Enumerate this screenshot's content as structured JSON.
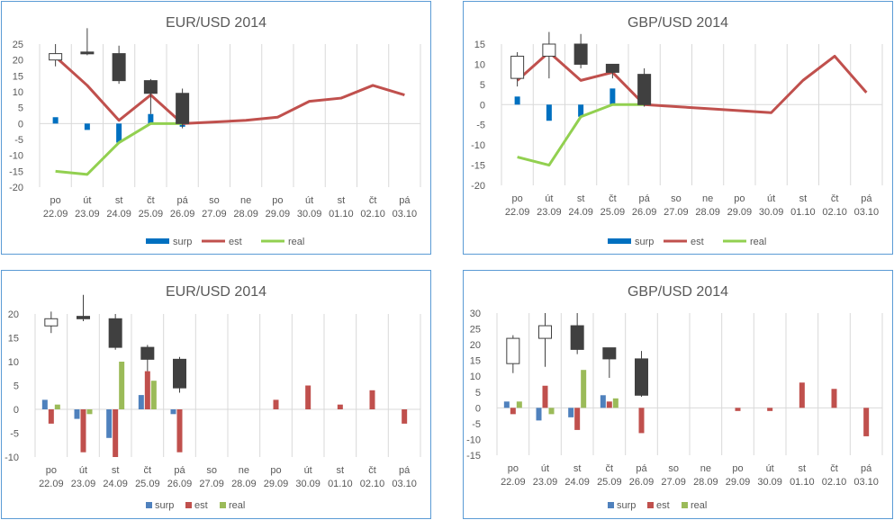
{
  "chart_data": [
    {
      "type": "line",
      "title": "EUR/USD 2014",
      "categories": [
        {
          "day": "po",
          "date": "22.09"
        },
        {
          "day": "út",
          "date": "23.09"
        },
        {
          "day": "st",
          "date": "24.09"
        },
        {
          "day": "čt",
          "date": "25.09"
        },
        {
          "day": "pá",
          "date": "26.09"
        },
        {
          "day": "so",
          "date": "27.09"
        },
        {
          "day": "ne",
          "date": "28.09"
        },
        {
          "day": "po",
          "date": "29.09"
        },
        {
          "day": "út",
          "date": "30.09"
        },
        {
          "day": "st",
          "date": "01.10"
        },
        {
          "day": "čt",
          "date": "02.10"
        },
        {
          "day": "pá",
          "date": "03.10"
        }
      ],
      "ylim": [
        -20,
        25
      ],
      "ystep": 5,
      "legend": [
        "surp",
        "est",
        "real"
      ],
      "series": {
        "surp": [
          2,
          -2,
          -6,
          3,
          -1,
          null,
          null,
          null,
          null,
          null,
          null,
          null
        ],
        "est": [
          21,
          12,
          1,
          9,
          0,
          0.5,
          1,
          2,
          7,
          8,
          12,
          9
        ],
        "real": [
          -15,
          -16,
          -6,
          0,
          0,
          null,
          null,
          null,
          null,
          null,
          null,
          null
        ]
      },
      "candles": [
        {
          "i": 0,
          "open": 20,
          "close": 22,
          "high": 25,
          "low": 18
        },
        {
          "i": 1,
          "open": 22.5,
          "close": 22,
          "high": 30,
          "low": 21.5
        },
        {
          "i": 2,
          "open": 22,
          "close": 13.5,
          "high": 24.5,
          "low": 12.5
        },
        {
          "i": 3,
          "open": 13.5,
          "close": 9.5,
          "high": 14,
          "low": 3
        },
        {
          "i": 4,
          "open": 9.5,
          "close": 0,
          "high": 11,
          "low": -1.5
        }
      ]
    },
    {
      "type": "line",
      "title": "GBP/USD 2014",
      "categories": [
        {
          "day": "po",
          "date": "22.09"
        },
        {
          "day": "út",
          "date": "23.09"
        },
        {
          "day": "st",
          "date": "24.09"
        },
        {
          "day": "čt",
          "date": "25.09"
        },
        {
          "day": "pá",
          "date": "26.09"
        },
        {
          "day": "so",
          "date": "27.09"
        },
        {
          "day": "ne",
          "date": "28.09"
        },
        {
          "day": "po",
          "date": "29.09"
        },
        {
          "day": "út",
          "date": "30.09"
        },
        {
          "day": "st",
          "date": "01.10"
        },
        {
          "day": "čt",
          "date": "02.10"
        },
        {
          "day": "pá",
          "date": "03.10"
        }
      ],
      "ylim": [
        -20,
        15
      ],
      "ystep": 5,
      "legend": [
        "surp",
        "est",
        "real"
      ],
      "series": {
        "surp": [
          2,
          -4,
          -3,
          4,
          0,
          null,
          null,
          null,
          null,
          null,
          null,
          null
        ],
        "est": [
          6,
          13,
          6,
          8,
          0,
          -0.5,
          -1,
          -1.5,
          -2,
          6,
          12,
          3
        ],
        "real": [
          -13,
          -15,
          -3,
          0,
          0,
          null,
          null,
          null,
          null,
          null,
          null,
          null
        ]
      },
      "candles": [
        {
          "i": 0,
          "open": 6.5,
          "close": 12,
          "high": 13,
          "low": 4.5
        },
        {
          "i": 1,
          "open": 12,
          "close": 15,
          "high": 18,
          "low": 6.5
        },
        {
          "i": 2,
          "open": 15,
          "close": 10,
          "high": 17.5,
          "low": 9
        },
        {
          "i": 3,
          "open": 10,
          "close": 8,
          "high": 10,
          "low": 6.5
        },
        {
          "i": 4,
          "open": 7.5,
          "close": 0,
          "high": 9,
          "low": -0.5
        }
      ]
    },
    {
      "type": "bar",
      "title": "EUR/USD 2014",
      "categories": [
        {
          "day": "po",
          "date": "22.09"
        },
        {
          "day": "út",
          "date": "23.09"
        },
        {
          "day": "st",
          "date": "24.09"
        },
        {
          "day": "čt",
          "date": "25.09"
        },
        {
          "day": "pá",
          "date": "26.09"
        },
        {
          "day": "so",
          "date": "27.09"
        },
        {
          "day": "ne",
          "date": "28.09"
        },
        {
          "day": "po",
          "date": "29.09"
        },
        {
          "day": "út",
          "date": "30.09"
        },
        {
          "day": "st",
          "date": "01.10"
        },
        {
          "day": "čt",
          "date": "02.10"
        },
        {
          "day": "pá",
          "date": "03.10"
        }
      ],
      "ylim": [
        -10,
        20
      ],
      "ystep": 5,
      "legend": [
        "surp",
        "est",
        "real"
      ],
      "series": {
        "surp": [
          2,
          -2,
          -6,
          3,
          -1,
          null,
          null,
          null,
          null,
          null,
          null,
          null
        ],
        "est": [
          -3,
          -9,
          -10,
          8,
          -9,
          null,
          null,
          2,
          5,
          1,
          4,
          -3
        ],
        "real": [
          1,
          -1,
          10,
          6,
          null,
          null,
          null,
          null,
          null,
          null,
          null,
          null
        ]
      },
      "candles": [
        {
          "i": 0,
          "open": 17.5,
          "close": 19,
          "high": 20.5,
          "low": 16
        },
        {
          "i": 1,
          "open": 19.5,
          "close": 19,
          "high": 24,
          "low": 18.5
        },
        {
          "i": 2,
          "open": 19,
          "close": 13,
          "high": 20,
          "low": 12.5
        },
        {
          "i": 3,
          "open": 13,
          "close": 10.5,
          "high": 13.5,
          "low": 8
        },
        {
          "i": 4,
          "open": 10.5,
          "close": 4.5,
          "high": 11,
          "low": 3.5
        }
      ]
    },
    {
      "type": "bar",
      "title": "GBP/USD 2014",
      "categories": [
        {
          "day": "po",
          "date": "22.09"
        },
        {
          "day": "út",
          "date": "23.09"
        },
        {
          "day": "st",
          "date": "24.09"
        },
        {
          "day": "čt",
          "date": "25.09"
        },
        {
          "day": "pá",
          "date": "26.09"
        },
        {
          "day": "so",
          "date": "27.09"
        },
        {
          "day": "ne",
          "date": "28.09"
        },
        {
          "day": "po",
          "date": "29.09"
        },
        {
          "day": "út",
          "date": "30.09"
        },
        {
          "day": "st",
          "date": "01.10"
        },
        {
          "day": "čt",
          "date": "02.10"
        },
        {
          "day": "pá",
          "date": "03.10"
        }
      ],
      "ylim": [
        -15,
        30
      ],
      "ystep": 5,
      "legend": [
        "surp",
        "est",
        "real"
      ],
      "series": {
        "surp": [
          2,
          -4,
          -3,
          4,
          0,
          null,
          null,
          null,
          null,
          null,
          null,
          null
        ],
        "est": [
          -2,
          7,
          -7,
          2,
          -8,
          null,
          null,
          -1,
          -1,
          8,
          6,
          -9
        ],
        "real": [
          2,
          -2,
          12,
          3,
          null,
          null,
          null,
          null,
          null,
          null,
          null,
          null
        ]
      },
      "candles": [
        {
          "i": 0,
          "open": 14,
          "close": 22,
          "high": 23,
          "low": 11
        },
        {
          "i": 1,
          "open": 22,
          "close": 26,
          "high": 30,
          "low": 13
        },
        {
          "i": 2,
          "open": 26,
          "close": 18.5,
          "high": 30,
          "low": 17
        },
        {
          "i": 3,
          "open": 19,
          "close": 15.5,
          "high": 19,
          "low": 9.5
        },
        {
          "i": 4,
          "open": 15.5,
          "close": 4,
          "high": 18,
          "low": 3.5
        }
      ]
    }
  ],
  "colors": {
    "frame": "#5b9bd5",
    "grid": "#d9d9d9",
    "text": "#595959",
    "title": "#595959",
    "surp_line_chart": "#0070c0",
    "est_line_chart": "#c0504d",
    "real_line_chart": "#92d050",
    "surp_bar_chart": "#4f81bd",
    "est_bar_chart": "#c0504d",
    "real_bar_chart": "#9bbb59",
    "candle_up": "#ffffff",
    "candle_down": "#404040",
    "candle_edge": "#404040"
  }
}
